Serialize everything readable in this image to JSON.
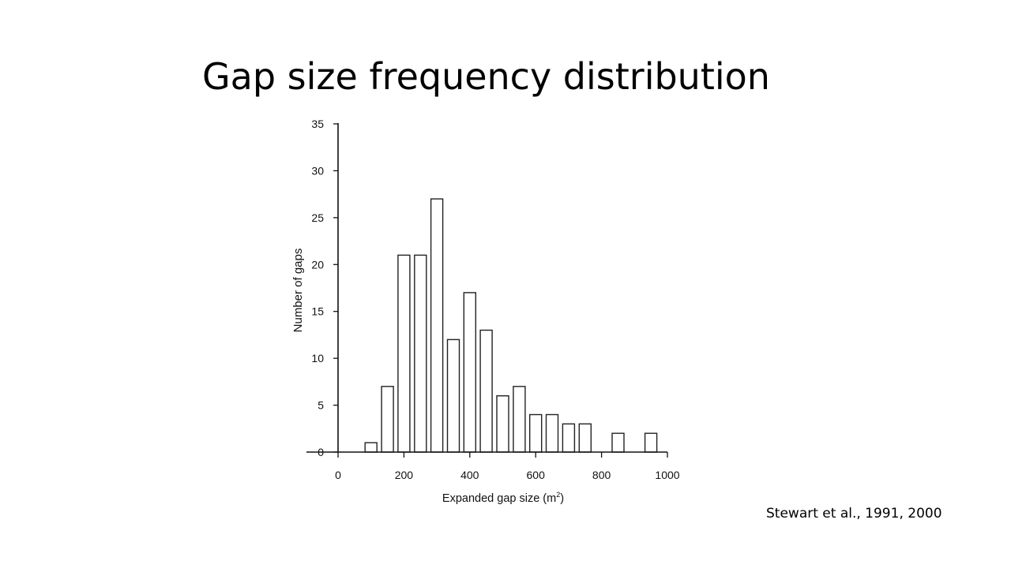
{
  "slide": {
    "title": "Gap size frequency distribution",
    "citation": "Stewart et al., 1991, 2000"
  },
  "chart_data": {
    "type": "bar",
    "title": "",
    "xlabel": "Expanded gap size (m",
    "xlabel_sup": "2",
    "xlabel_suffix": ")",
    "ylabel": "Number of gaps",
    "xlim": [
      0,
      1000
    ],
    "ylim": [
      0,
      35
    ],
    "xticks": [
      0,
      200,
      400,
      600,
      800,
      1000
    ],
    "yticks": [
      0,
      5,
      10,
      15,
      20,
      25,
      30,
      35
    ],
    "bin_width": 50,
    "x": [
      100,
      150,
      200,
      250,
      300,
      350,
      400,
      450,
      500,
      550,
      600,
      650,
      700,
      750,
      850,
      950
    ],
    "values": [
      1,
      7,
      21,
      21,
      27,
      12,
      17,
      13,
      6,
      7,
      4,
      4,
      3,
      3,
      2,
      2
    ],
    "grid": false,
    "bar_fill": "#ffffff",
    "bar_stroke": "#222222"
  }
}
